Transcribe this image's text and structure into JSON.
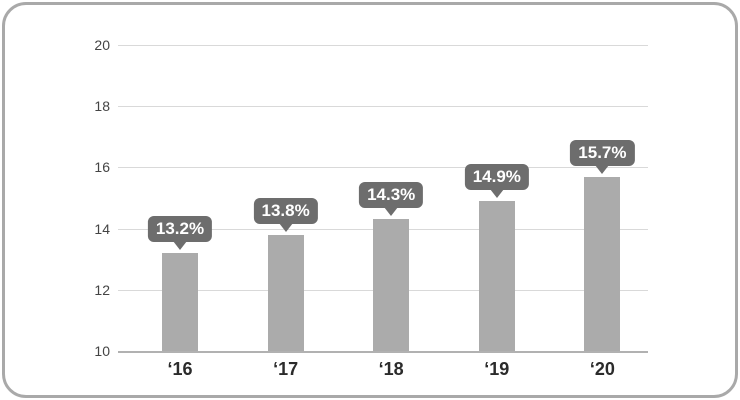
{
  "chart_data": {
    "type": "bar",
    "categories": [
      "‘16",
      "‘17",
      "‘18",
      "‘19",
      "‘20"
    ],
    "values": [
      13.2,
      13.8,
      14.3,
      14.9,
      15.7
    ],
    "data_labels": [
      "13.2%",
      "13.8%",
      "14.3%",
      "14.9%",
      "15.7%"
    ],
    "title": "",
    "xlabel": "",
    "ylabel": "",
    "ylim": [
      10,
      20
    ],
    "yticks": [
      10,
      12,
      14,
      16,
      18,
      20
    ],
    "grid": "horizontal",
    "legend": "none",
    "colors": {
      "bar": "#ababab",
      "label_bubble": "#6d6d6d",
      "label_text": "#ffffff",
      "gridline": "#d9d9d9",
      "axis_line": "#b1b1b1",
      "ytick_text": "#444444",
      "xtick_text": "#2b2b2b",
      "card_border": "#a9a9a9",
      "background": "#ffffff"
    }
  }
}
